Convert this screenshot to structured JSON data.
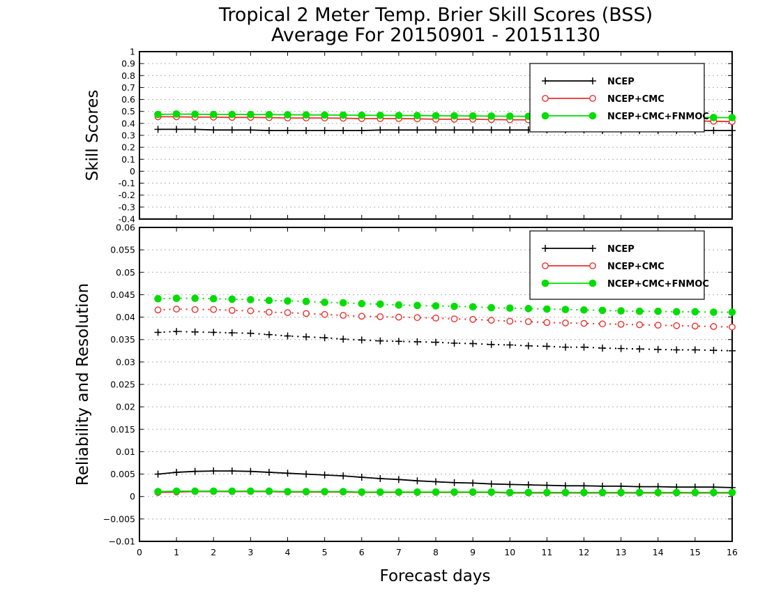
{
  "title_line1": "Tropical 2 Meter Temp. Brier Skill Scores (BSS)",
  "title_line2": "Average For 20150901 - 20151130",
  "colors": {
    "NCEP": "#000000",
    "NCEP+CMC": "#e8302c",
    "NCEP+CMC+FNMOC": "#00dd00"
  },
  "chart_data": [
    {
      "type": "line",
      "panel": "top",
      "ylabel": "Skill Scores",
      "xlabel": "",
      "xlim": [
        0,
        16
      ],
      "ylim": [
        -0.4,
        1
      ],
      "x_ticks": [
        0,
        1,
        2,
        3,
        4,
        5,
        6,
        7,
        8,
        9,
        10,
        11,
        12,
        13,
        14,
        15,
        16
      ],
      "y_ticks": [
        "-0.4",
        "-0.3",
        "-0.2",
        "-0.1",
        "0",
        "0.1",
        "0.2",
        "0.3",
        "0.4",
        "0.5",
        "0.6",
        "0.7",
        "0.8",
        "0.9",
        "1"
      ],
      "grid": true,
      "legend_position": "top-right",
      "legend": [
        "NCEP",
        "NCEP+CMC",
        "NCEP+CMC+FNMOC"
      ],
      "x": [
        0.5,
        1,
        1.5,
        2,
        2.5,
        3,
        3.5,
        4,
        4.5,
        5,
        5.5,
        6,
        6.5,
        7,
        7.5,
        8,
        8.5,
        9,
        9.5,
        10,
        10.5,
        11,
        11.5,
        12,
        12.5,
        13,
        13.5,
        14,
        14.5,
        15,
        15.5,
        16
      ],
      "series": [
        {
          "name": "NCEP",
          "marker": "plus",
          "style": "solid",
          "values": [
            0.35,
            0.35,
            0.35,
            0.345,
            0.345,
            0.345,
            0.34,
            0.34,
            0.34,
            0.34,
            0.34,
            0.34,
            0.345,
            0.345,
            0.345,
            0.345,
            0.345,
            0.345,
            0.345,
            0.345,
            0.345,
            0.345,
            0.345,
            0.345,
            0.34,
            0.34,
            0.34,
            0.34,
            0.34,
            0.34,
            0.34,
            0.34
          ]
        },
        {
          "name": "NCEP+CMC",
          "marker": "open-circle",
          "style": "solid",
          "values": [
            0.455,
            0.455,
            0.452,
            0.452,
            0.45,
            0.45,
            0.448,
            0.445,
            0.445,
            0.445,
            0.443,
            0.44,
            0.44,
            0.44,
            0.438,
            0.435,
            0.435,
            0.435,
            0.432,
            0.43,
            0.43,
            0.43,
            0.428,
            0.428,
            0.425,
            0.425,
            0.425,
            0.423,
            0.42,
            0.42,
            0.418,
            0.415
          ]
        },
        {
          "name": "NCEP+CMC+FNMOC",
          "marker": "filled-circle",
          "style": "solid",
          "values": [
            0.475,
            0.478,
            0.477,
            0.475,
            0.475,
            0.474,
            0.473,
            0.472,
            0.471,
            0.47,
            0.469,
            0.468,
            0.467,
            0.466,
            0.465,
            0.464,
            0.463,
            0.462,
            0.461,
            0.46,
            0.459,
            0.458,
            0.457,
            0.456,
            0.455,
            0.454,
            0.453,
            0.452,
            0.451,
            0.45,
            0.449,
            0.448
          ]
        }
      ]
    },
    {
      "type": "line",
      "panel": "bottom",
      "ylabel": "Reliability and Resolution",
      "xlabel": "Forecast days",
      "xlim": [
        0,
        16
      ],
      "ylim": [
        -0.01,
        0.06
      ],
      "x_ticks": [
        0,
        1,
        2,
        3,
        4,
        5,
        6,
        7,
        8,
        9,
        10,
        11,
        12,
        13,
        14,
        15,
        16
      ],
      "y_ticks": [
        "−0.01",
        "−0.005",
        "0",
        "0.005",
        "0.01",
        "0.015",
        "0.02",
        "0.025",
        "0.03",
        "0.035",
        "0.04",
        "0.045",
        "0.05",
        "0.055",
        "0.06"
      ],
      "grid": true,
      "legend_position": "top-right",
      "legend": [
        "NCEP",
        "NCEP+CMC",
        "NCEP+CMC+FNMOC"
      ],
      "x": [
        0.5,
        1,
        1.5,
        2,
        2.5,
        3,
        3.5,
        4,
        4.5,
        5,
        5.5,
        6,
        6.5,
        7,
        7.5,
        8,
        8.5,
        9,
        9.5,
        10,
        10.5,
        11,
        11.5,
        12,
        12.5,
        13,
        13.5,
        14,
        14.5,
        15,
        15.5,
        16
      ],
      "series": [
        {
          "name": "NCEP",
          "metric": "resolution",
          "marker": "plus",
          "style": "dotted",
          "values": [
            0.0366,
            0.0368,
            0.0367,
            0.0366,
            0.0365,
            0.0364,
            0.0361,
            0.0358,
            0.0356,
            0.0354,
            0.0351,
            0.0349,
            0.0347,
            0.0346,
            0.0345,
            0.0344,
            0.0342,
            0.0341,
            0.0339,
            0.0338,
            0.0336,
            0.0335,
            0.0333,
            0.0333,
            0.0331,
            0.033,
            0.0329,
            0.0328,
            0.0327,
            0.0327,
            0.0326,
            0.0325
          ]
        },
        {
          "name": "NCEP+CMC",
          "metric": "resolution",
          "marker": "open-circle",
          "style": "dotted",
          "values": [
            0.0416,
            0.0418,
            0.0417,
            0.0417,
            0.0415,
            0.0414,
            0.0411,
            0.041,
            0.0408,
            0.0406,
            0.0404,
            0.0402,
            0.0401,
            0.04,
            0.0399,
            0.0398,
            0.0396,
            0.0395,
            0.0393,
            0.0391,
            0.039,
            0.0388,
            0.0387,
            0.0386,
            0.0385,
            0.0384,
            0.0383,
            0.0382,
            0.0381,
            0.038,
            0.0379,
            0.0378
          ]
        },
        {
          "name": "NCEP+CMC+FNMOC",
          "metric": "resolution",
          "marker": "filled-circle",
          "style": "dotted",
          "values": [
            0.0441,
            0.0442,
            0.0442,
            0.0441,
            0.044,
            0.0439,
            0.0437,
            0.0436,
            0.0435,
            0.0433,
            0.0432,
            0.043,
            0.0429,
            0.0427,
            0.0426,
            0.0425,
            0.0424,
            0.0423,
            0.0421,
            0.042,
            0.0419,
            0.0418,
            0.0417,
            0.0416,
            0.0415,
            0.0414,
            0.0413,
            0.0413,
            0.0412,
            0.0412,
            0.0411,
            0.0411
          ]
        },
        {
          "name": "NCEP",
          "metric": "reliability",
          "marker": "plus",
          "style": "solid",
          "values": [
            0.005,
            0.0054,
            0.0056,
            0.0057,
            0.0057,
            0.0056,
            0.0054,
            0.0052,
            0.005,
            0.0048,
            0.0046,
            0.0043,
            0.004,
            0.0038,
            0.0035,
            0.0033,
            0.0031,
            0.003,
            0.0028,
            0.0027,
            0.0026,
            0.0025,
            0.0024,
            0.0024,
            0.0023,
            0.0023,
            0.0022,
            0.0022,
            0.0021,
            0.0021,
            0.0021,
            0.002
          ]
        },
        {
          "name": "NCEP+CMC",
          "metric": "reliability",
          "marker": "open-circle",
          "style": "solid",
          "values": [
            0.0009,
            0.001,
            0.0011,
            0.0011,
            0.0011,
            0.0011,
            0.0011,
            0.001,
            0.001,
            0.001,
            0.001,
            0.0009,
            0.0009,
            0.0009,
            0.0009,
            0.0009,
            0.0009,
            0.0009,
            0.0009,
            0.0008,
            0.0008,
            0.0008,
            0.0008,
            0.0008,
            0.0008,
            0.0008,
            0.0008,
            0.0008,
            0.0008,
            0.0008,
            0.0008,
            0.0008
          ]
        },
        {
          "name": "NCEP+CMC+FNMOC",
          "metric": "reliability",
          "marker": "filled-circle",
          "style": "solid",
          "values": [
            0.0011,
            0.0012,
            0.0012,
            0.0012,
            0.0012,
            0.0012,
            0.0012,
            0.0011,
            0.0011,
            0.0011,
            0.0011,
            0.001,
            0.001,
            0.001,
            0.001,
            0.001,
            0.001,
            0.001,
            0.001,
            0.0009,
            0.0009,
            0.0009,
            0.0009,
            0.0009,
            0.0009,
            0.0009,
            0.0009,
            0.0009,
            0.0009,
            0.0009,
            0.0009,
            0.0009
          ]
        }
      ]
    }
  ]
}
